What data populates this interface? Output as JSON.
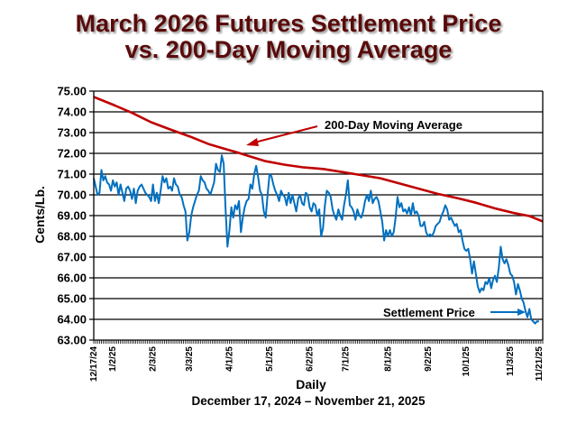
{
  "chart_data": {
    "type": "line",
    "title_line1": "March 2026 Futures Settlement Price",
    "title_line2": "vs. 200-Day Moving Average",
    "xlabel": "Daily",
    "xlabel_sub": "December 17, 2024 – November 21, 2025",
    "ylabel": "Cents/Lb.",
    "ylim": [
      63,
      75
    ],
    "ytick_step": 1,
    "yticks": [
      "63.00",
      "64.00",
      "65.00",
      "66.00",
      "67.00",
      "68.00",
      "69.00",
      "70.00",
      "71.00",
      "72.00",
      "73.00",
      "74.00",
      "75.00"
    ],
    "x_range_days": [
      0,
      235
    ],
    "xticks": [
      {
        "label": "12/17/24",
        "day": 0
      },
      {
        "label": "1/2/25",
        "day": 10
      },
      {
        "label": "2/3/25",
        "day": 31
      },
      {
        "label": "3/3/25",
        "day": 50
      },
      {
        "label": "4/1/25",
        "day": 71
      },
      {
        "label": "5/1/25",
        "day": 92
      },
      {
        "label": "6/2/25",
        "day": 113
      },
      {
        "label": "7/1/25",
        "day": 132
      },
      {
        "label": "8/1/25",
        "day": 154
      },
      {
        "label": "9/2/25",
        "day": 175
      },
      {
        "label": "10/1/25",
        "day": 195
      },
      {
        "label": "11/3/25",
        "day": 218
      },
      {
        "label": "11/21/25",
        "day": 233
      }
    ],
    "grid": true,
    "series": [
      {
        "name": "200-Day Moving Average",
        "color": "#c00000",
        "points": [
          [
            0,
            74.72
          ],
          [
            10,
            74.35
          ],
          [
            20,
            73.95
          ],
          [
            30,
            73.5
          ],
          [
            40,
            73.15
          ],
          [
            50,
            72.82
          ],
          [
            60,
            72.45
          ],
          [
            70,
            72.18
          ],
          [
            75,
            72.05
          ],
          [
            80,
            71.9
          ],
          [
            90,
            71.62
          ],
          [
            100,
            71.45
          ],
          [
            110,
            71.32
          ],
          [
            120,
            71.25
          ],
          [
            130,
            71.1
          ],
          [
            140,
            70.95
          ],
          [
            150,
            70.8
          ],
          [
            160,
            70.55
          ],
          [
            170,
            70.3
          ],
          [
            180,
            70.05
          ],
          [
            190,
            69.85
          ],
          [
            200,
            69.62
          ],
          [
            210,
            69.35
          ],
          [
            220,
            69.12
          ],
          [
            228,
            68.98
          ],
          [
            235,
            68.72
          ]
        ]
      },
      {
        "name": "Settlement Price",
        "color": "#0070c0",
        "points": [
          [
            0,
            70.8
          ],
          [
            1,
            70.4
          ],
          [
            2,
            70.0
          ],
          [
            3,
            70.1
          ],
          [
            4,
            71.2
          ],
          [
            5,
            70.7
          ],
          [
            6,
            70.9
          ],
          [
            7,
            70.6
          ],
          [
            8,
            70.5
          ],
          [
            9,
            70.2
          ],
          [
            10,
            70.7
          ],
          [
            11,
            70.4
          ],
          [
            12,
            70.6
          ],
          [
            13,
            70.0
          ],
          [
            14,
            70.5
          ],
          [
            15,
            70.1
          ],
          [
            16,
            69.7
          ],
          [
            17,
            70.3
          ],
          [
            18,
            70.4
          ],
          [
            19,
            70.2
          ],
          [
            20,
            69.8
          ],
          [
            21,
            70.3
          ],
          [
            22,
            69.6
          ],
          [
            23,
            70.2
          ],
          [
            24,
            70.4
          ],
          [
            25,
            70.5
          ],
          [
            26,
            70.3
          ],
          [
            27,
            70.1
          ],
          [
            28,
            70.0
          ],
          [
            29,
            69.9
          ],
          [
            30,
            69.7
          ],
          [
            31,
            70.5
          ],
          [
            32,
            69.7
          ],
          [
            33,
            70.1
          ],
          [
            34,
            69.6
          ],
          [
            35,
            70.2
          ],
          [
            36,
            70.9
          ],
          [
            37,
            70.6
          ],
          [
            38,
            70.8
          ],
          [
            39,
            70.3
          ],
          [
            40,
            70.4
          ],
          [
            41,
            70.2
          ],
          [
            42,
            70.8
          ],
          [
            43,
            70.5
          ],
          [
            44,
            70.4
          ],
          [
            45,
            70.0
          ],
          [
            46,
            69.9
          ],
          [
            47,
            69.5
          ],
          [
            48,
            69.2
          ],
          [
            49,
            67.8
          ],
          [
            50,
            68.2
          ],
          [
            51,
            69.0
          ],
          [
            52,
            69.4
          ],
          [
            53,
            69.7
          ],
          [
            54,
            70.0
          ],
          [
            55,
            70.2
          ],
          [
            56,
            70.9
          ],
          [
            57,
            70.7
          ],
          [
            58,
            70.6
          ],
          [
            59,
            70.3
          ],
          [
            60,
            70.2
          ],
          [
            61,
            70.0
          ],
          [
            62,
            70.3
          ],
          [
            63,
            70.6
          ],
          [
            64,
            71.5
          ],
          [
            65,
            71.2
          ],
          [
            66,
            71.1
          ],
          [
            67,
            71.9
          ],
          [
            68,
            71.5
          ],
          [
            69,
            69.3
          ],
          [
            70,
            67.5
          ],
          [
            71,
            68.3
          ],
          [
            72,
            69.4
          ],
          [
            73,
            68.9
          ],
          [
            74,
            69.5
          ],
          [
            75,
            69.3
          ],
          [
            76,
            69.7
          ],
          [
            77,
            68.2
          ],
          [
            78,
            68.9
          ],
          [
            79,
            69.4
          ],
          [
            80,
            69.7
          ],
          [
            81,
            69.8
          ],
          [
            82,
            70.5
          ],
          [
            83,
            70.3
          ],
          [
            84,
            71.0
          ],
          [
            85,
            71.4
          ],
          [
            86,
            70.9
          ],
          [
            87,
            70.2
          ],
          [
            88,
            70.0
          ],
          [
            89,
            69.2
          ],
          [
            90,
            68.9
          ],
          [
            91,
            70.0
          ],
          [
            92,
            71.0
          ],
          [
            93,
            70.9
          ],
          [
            94,
            70.5
          ],
          [
            95,
            70.2
          ],
          [
            96,
            70.0
          ],
          [
            97,
            69.7
          ],
          [
            98,
            70.2
          ],
          [
            99,
            70.0
          ],
          [
            100,
            69.9
          ],
          [
            101,
            69.5
          ],
          [
            102,
            70.1
          ],
          [
            103,
            69.6
          ],
          [
            104,
            70.0
          ],
          [
            105,
            69.6
          ],
          [
            106,
            69.2
          ],
          [
            107,
            69.8
          ],
          [
            108,
            70.0
          ],
          [
            109,
            69.6
          ],
          [
            110,
            69.5
          ],
          [
            111,
            70.1
          ],
          [
            112,
            70.0
          ],
          [
            113,
            69.4
          ],
          [
            114,
            69.2
          ],
          [
            115,
            69.6
          ],
          [
            116,
            69.5
          ],
          [
            117,
            69.0
          ],
          [
            118,
            69.3
          ],
          [
            119,
            68.0
          ],
          [
            120,
            68.4
          ],
          [
            121,
            69.5
          ],
          [
            122,
            70.2
          ],
          [
            123,
            70.1
          ],
          [
            124,
            69.9
          ],
          [
            125,
            69.3
          ],
          [
            126,
            69.0
          ],
          [
            127,
            68.8
          ],
          [
            128,
            69.3
          ],
          [
            129,
            69.0
          ],
          [
            130,
            68.8
          ],
          [
            131,
            69.5
          ],
          [
            132,
            70.0
          ],
          [
            133,
            70.7
          ],
          [
            134,
            69.5
          ],
          [
            135,
            69.4
          ],
          [
            136,
            69.2
          ],
          [
            137,
            68.8
          ],
          [
            138,
            69.3
          ],
          [
            139,
            69.0
          ],
          [
            140,
            68.9
          ],
          [
            141,
            69.2
          ],
          [
            142,
            69.7
          ],
          [
            143,
            70.0
          ],
          [
            144,
            69.7
          ],
          [
            145,
            70.2
          ],
          [
            146,
            69.6
          ],
          [
            147,
            69.8
          ],
          [
            148,
            69.9
          ],
          [
            149,
            69.7
          ],
          [
            150,
            69.2
          ],
          [
            151,
            68.7
          ],
          [
            152,
            67.8
          ],
          [
            153,
            68.3
          ],
          [
            154,
            68.0
          ],
          [
            155,
            68.3
          ],
          [
            156,
            68.0
          ],
          [
            157,
            68.2
          ],
          [
            158,
            68.9
          ],
          [
            159,
            69.9
          ],
          [
            160,
            69.4
          ],
          [
            161,
            69.6
          ],
          [
            162,
            69.2
          ],
          [
            163,
            69.3
          ],
          [
            164,
            69.1
          ],
          [
            165,
            69.4
          ],
          [
            166,
            69.0
          ],
          [
            167,
            69.6
          ],
          [
            168,
            69.1
          ],
          [
            169,
            69.2
          ],
          [
            170,
            69.0
          ],
          [
            171,
            68.5
          ],
          [
            172,
            68.5
          ],
          [
            173,
            68.7
          ],
          [
            174,
            68.2
          ],
          [
            175,
            68.0
          ],
          [
            176,
            68.1
          ],
          [
            177,
            68.0
          ],
          [
            178,
            68.2
          ],
          [
            179,
            68.5
          ],
          [
            180,
            68.6
          ],
          [
            181,
            68.7
          ],
          [
            182,
            69.0
          ],
          [
            183,
            69.2
          ],
          [
            184,
            69.5
          ],
          [
            185,
            69.3
          ],
          [
            186,
            68.8
          ],
          [
            187,
            68.9
          ],
          [
            188,
            68.7
          ],
          [
            189,
            68.5
          ],
          [
            190,
            68.6
          ],
          [
            191,
            68.2
          ],
          [
            192,
            68.3
          ],
          [
            193,
            67.8
          ],
          [
            194,
            67.4
          ],
          [
            195,
            67.3
          ],
          [
            196,
            67.4
          ],
          [
            197,
            66.9
          ],
          [
            198,
            66.2
          ],
          [
            199,
            66.8
          ],
          [
            200,
            66.2
          ],
          [
            201,
            65.6
          ],
          [
            202,
            65.3
          ],
          [
            203,
            65.5
          ],
          [
            204,
            65.4
          ],
          [
            205,
            65.8
          ],
          [
            206,
            65.7
          ],
          [
            207,
            66.0
          ],
          [
            208,
            65.5
          ],
          [
            209,
            65.9
          ],
          [
            210,
            66.1
          ],
          [
            211,
            65.8
          ],
          [
            212,
            66.5
          ],
          [
            213,
            67.5
          ],
          [
            214,
            66.9
          ],
          [
            215,
            66.7
          ],
          [
            216,
            66.9
          ],
          [
            217,
            66.6
          ],
          [
            218,
            66.2
          ],
          [
            219,
            66.1
          ],
          [
            220,
            65.8
          ],
          [
            221,
            65.2
          ],
          [
            222,
            65.7
          ],
          [
            223,
            65.4
          ],
          [
            224,
            65.0
          ],
          [
            225,
            64.8
          ],
          [
            226,
            64.4
          ],
          [
            227,
            64.1
          ],
          [
            228,
            64.5
          ],
          [
            229,
            64.0
          ],
          [
            230,
            63.9
          ],
          [
            231,
            63.8
          ],
          [
            232,
            63.9
          ],
          [
            233,
            63.9
          ]
        ]
      }
    ],
    "annotations": [
      {
        "text": "200-Day Moving Average",
        "target_series": "200-Day Moving Average",
        "arrow_color": "#c00000"
      },
      {
        "text": "Settlement Price",
        "target_series": "Settlement Price",
        "arrow_color": "#0070c0"
      }
    ],
    "legend": "none (inline annotations)"
  }
}
